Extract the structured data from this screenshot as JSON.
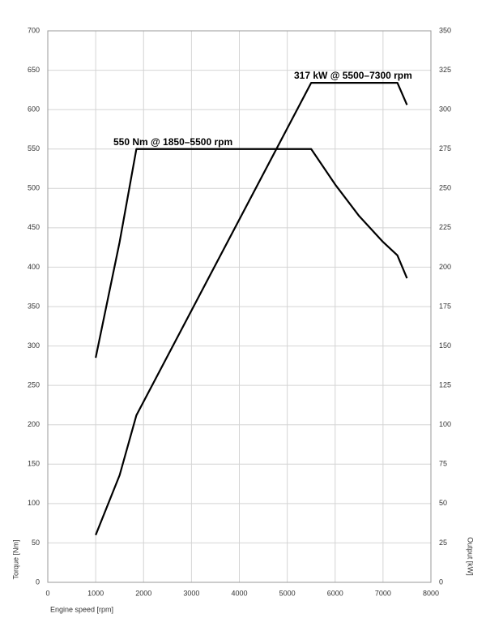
{
  "chart_data": {
    "type": "line",
    "annotations": [
      "550 Nm @ 1850–5500 rpm",
      "317 kW @ 5500–7300 rpm"
    ],
    "xlabel": "Engine speed [rpm]",
    "ylabel": "Torque [Nm]",
    "y2label": "Output [kW]",
    "series": [
      {
        "name": "Torque",
        "color": "#000000",
        "x": [
          1000,
          1500,
          1850,
          5500,
          6000,
          6500,
          7000,
          7300,
          7500
        ],
        "values": [
          285,
          432,
          550,
          550,
          505,
          465,
          432,
          415,
          386
        ]
      },
      {
        "name": "Output",
        "color": "#000000",
        "axis": "y2",
        "x": [
          1000,
          1500,
          1850,
          5500,
          7300,
          7500
        ],
        "values": [
          30,
          68,
          106,
          317,
          317,
          303
        ]
      }
    ],
    "xlim": [
      0,
      8000
    ],
    "xticks": [
      0,
      1000,
      2000,
      3000,
      4000,
      5000,
      6000,
      7000,
      8000
    ],
    "ylim": [
      0,
      700
    ],
    "yticks": [
      0,
      50,
      100,
      150,
      200,
      250,
      300,
      350,
      400,
      450,
      500,
      550,
      600,
      650,
      700
    ],
    "y2lim": [
      0,
      350
    ],
    "y2ticks": [
      0,
      25,
      50,
      75,
      100,
      125,
      150,
      175,
      200,
      225,
      250,
      275,
      300,
      325,
      350
    ],
    "grid": true
  }
}
